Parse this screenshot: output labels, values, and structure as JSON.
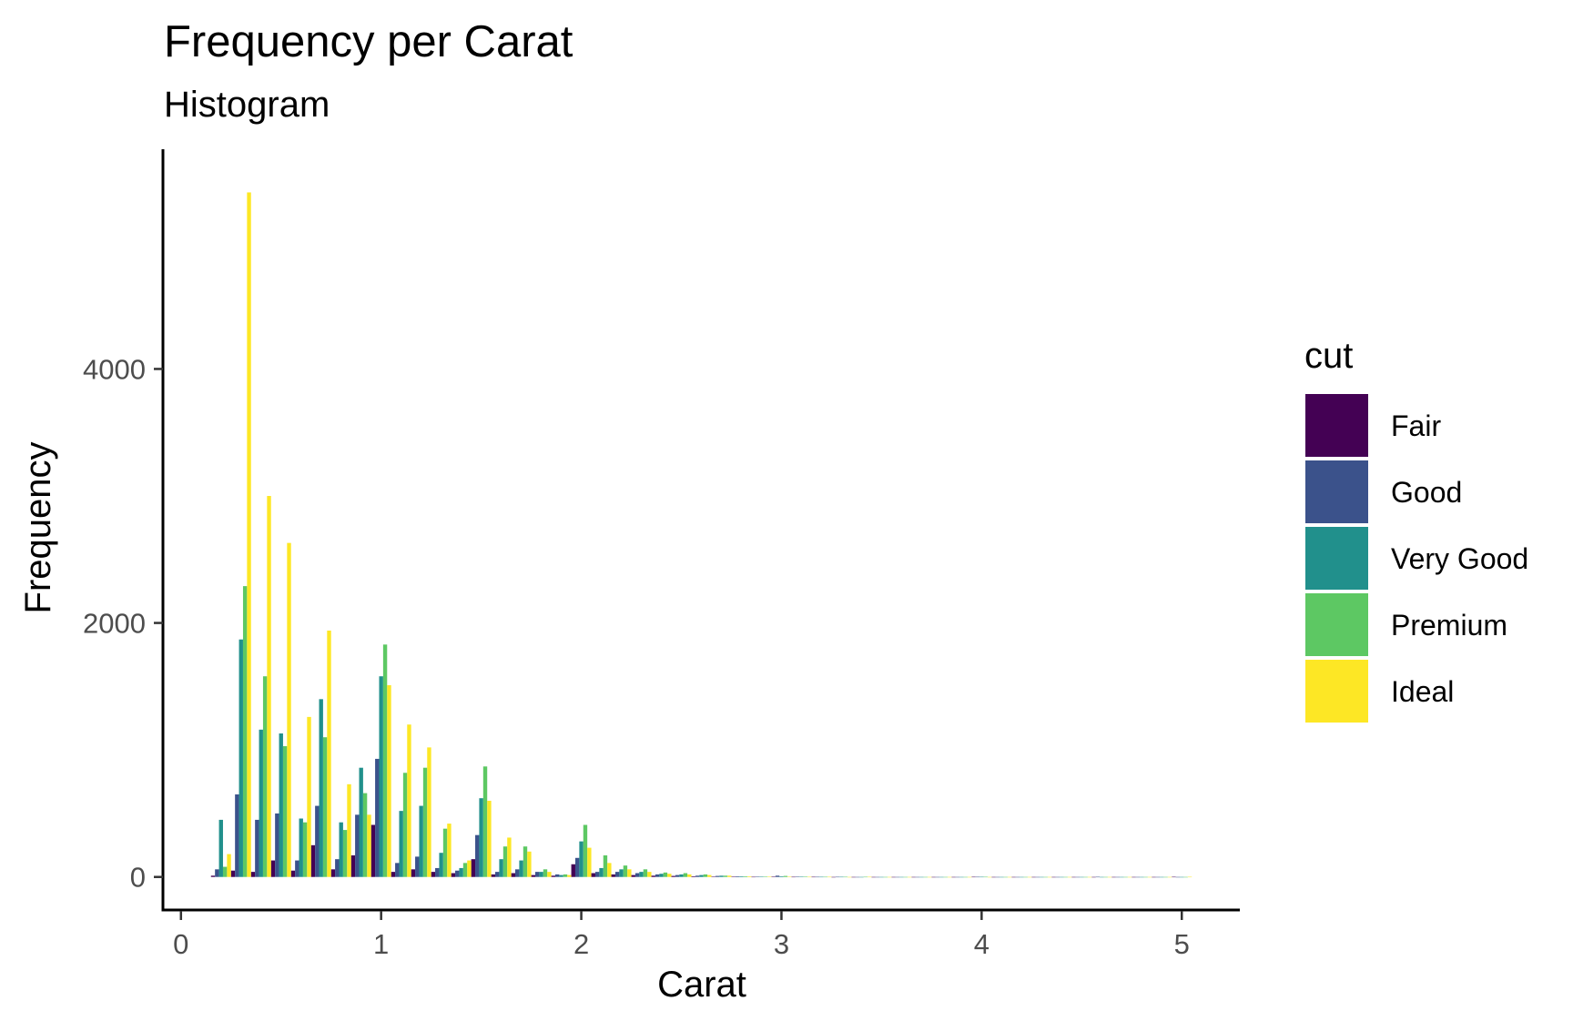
{
  "chart_data": {
    "type": "bar",
    "title": "Frequency per Carat",
    "subtitle": "Histogram",
    "xlabel": "Carat",
    "ylabel": "Frequency",
    "xlim": [
      -0.09,
      5.29
    ],
    "ylim": [
      -260,
      5730
    ],
    "x_ticks": [
      0,
      1,
      2,
      3,
      4,
      5
    ],
    "x_tick_labels": [
      "0",
      "1",
      "2",
      "3",
      "4",
      "5"
    ],
    "y_ticks": [
      0,
      2000,
      4000
    ],
    "y_tick_labels": [
      "0",
      "2000",
      "4000"
    ],
    "grid": false,
    "bin_width": 0.1,
    "legend": {
      "title": "cut",
      "position": "right"
    },
    "colors": {
      "Fair": "#440154",
      "Good": "#3B528B",
      "Very Good": "#21908C",
      "Premium": "#5DC863",
      "Ideal": "#FDE725"
    },
    "x": [
      0.2,
      0.3,
      0.4,
      0.5,
      0.6,
      0.7,
      0.8,
      0.9,
      1.0,
      1.1,
      1.2,
      1.3,
      1.4,
      1.5,
      1.6,
      1.7,
      1.8,
      1.9,
      2.0,
      2.1,
      2.2,
      2.3,
      2.4,
      2.5,
      2.6,
      2.7,
      2.8,
      2.9,
      3.0,
      3.1,
      3.2,
      3.3,
      3.4,
      3.5,
      3.6,
      3.7,
      3.8,
      3.9,
      4.0,
      4.1,
      4.2,
      4.3,
      4.4,
      4.5,
      4.6,
      4.7,
      4.8,
      4.9,
      5.0
    ],
    "series": [
      {
        "name": "Fair",
        "values": [
          10,
          50,
          40,
          130,
          50,
          250,
          60,
          170,
          410,
          40,
          60,
          40,
          30,
          140,
          20,
          30,
          15,
          10,
          100,
          30,
          20,
          15,
          10,
          8,
          5,
          3,
          2,
          1,
          3,
          1,
          1,
          0,
          0,
          0,
          0,
          0,
          0,
          0,
          1,
          0,
          0,
          0,
          0,
          0,
          0,
          0,
          0,
          0,
          1
        ]
      },
      {
        "name": "Good",
        "values": [
          60,
          650,
          450,
          500,
          130,
          560,
          140,
          490,
          930,
          110,
          160,
          70,
          50,
          330,
          40,
          60,
          40,
          20,
          150,
          40,
          40,
          30,
          20,
          15,
          10,
          8,
          5,
          3,
          10,
          2,
          1,
          1,
          0,
          0,
          0,
          0,
          0,
          0,
          1,
          0,
          0,
          0,
          0,
          0,
          1,
          0,
          0,
          0,
          0
        ]
      },
      {
        "name": "Very Good",
        "values": [
          450,
          1870,
          1160,
          1130,
          460,
          1400,
          430,
          860,
          1580,
          520,
          560,
          190,
          70,
          620,
          140,
          130,
          40,
          15,
          280,
          70,
          60,
          40,
          25,
          20,
          15,
          10,
          5,
          3,
          5,
          2,
          1,
          1,
          0,
          0,
          0,
          0,
          0,
          0,
          1,
          0,
          0,
          0,
          0,
          0,
          0,
          0,
          0,
          0,
          0
        ]
      },
      {
        "name": "Premium",
        "values": [
          80,
          2290,
          1580,
          1030,
          430,
          1100,
          370,
          660,
          1830,
          820,
          860,
          380,
          110,
          870,
          240,
          240,
          60,
          20,
          410,
          170,
          90,
          60,
          35,
          30,
          20,
          10,
          5,
          3,
          8,
          2,
          1,
          1,
          1,
          0,
          0,
          0,
          0,
          0,
          1,
          0,
          0,
          0,
          0,
          0,
          0,
          0,
          0,
          0,
          0
        ]
      },
      {
        "name": "Ideal",
        "values": [
          180,
          5390,
          3000,
          2630,
          1260,
          1940,
          730,
          490,
          1510,
          1200,
          1020,
          420,
          130,
          600,
          310,
          200,
          40,
          15,
          230,
          110,
          60,
          40,
          25,
          20,
          15,
          10,
          5,
          3,
          2,
          1,
          1,
          0,
          1,
          0,
          0,
          0,
          0,
          0,
          0,
          0,
          0,
          0,
          0,
          0,
          0,
          0,
          0,
          0,
          1
        ]
      }
    ]
  }
}
